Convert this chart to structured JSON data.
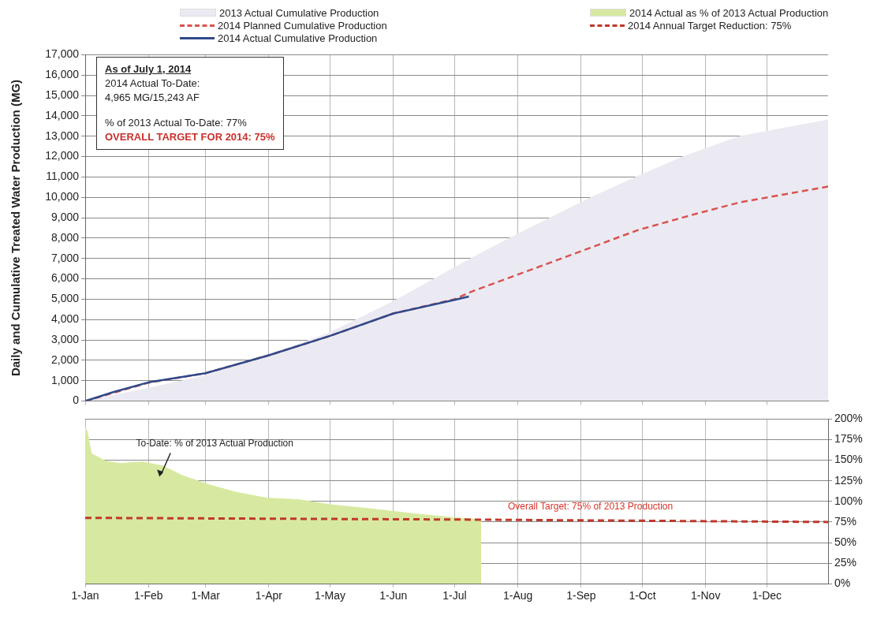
{
  "chart_data": [
    {
      "type": "area",
      "ylabel": "Daily and Cumulative Treated Water Production (MG)",
      "xlim": [
        "--01-01",
        "--12-31"
      ],
      "xticks": [
        {
          "value": "--01-01",
          "label": null
        },
        {
          "value": "--02-01",
          "label": null
        },
        {
          "value": "--03-01",
          "label": null
        },
        {
          "value": "--04-01",
          "label": null
        },
        {
          "value": "--05-01",
          "label": null
        },
        {
          "value": "--06-01",
          "label": null
        },
        {
          "value": "--07-01",
          "label": null
        },
        {
          "value": "--08-01",
          "label": null
        },
        {
          "value": "--09-01",
          "label": null
        },
        {
          "value": "--10-01",
          "label": null
        },
        {
          "value": "--11-01",
          "label": null
        },
        {
          "value": "--12-01",
          "label": null
        }
      ],
      "ylim": [
        0,
        17000
      ],
      "yticks": [
        0,
        {
          "value": 1000,
          "label": "1,000"
        },
        {
          "value": 2000,
          "label": "2,000"
        },
        {
          "value": 3000,
          "label": "3,000"
        },
        {
          "value": 4000,
          "label": "4,000"
        },
        {
          "value": 5000,
          "label": "5,000"
        },
        {
          "value": 6000,
          "label": "6,000"
        },
        {
          "value": 7000,
          "label": "7,000"
        },
        {
          "value": 8000,
          "label": "8,000"
        },
        {
          "value": 9000,
          "label": "9,000"
        },
        {
          "value": 10000,
          "label": "10,000"
        },
        {
          "value": 11000,
          "label": "11,000"
        },
        {
          "value": 12000,
          "label": "12,000"
        },
        {
          "value": 13000,
          "label": "13,000"
        },
        {
          "value": 14000,
          "label": "14,000"
        },
        {
          "value": 15000,
          "label": "15,000"
        },
        {
          "value": 16000,
          "label": "16,000"
        },
        {
          "value": 17000,
          "label": "17,000"
        }
      ],
      "tick_labels": "y",
      "grid": true,
      "legend": "top",
      "marker": "none",
      "annotations": [
        "As of July 1, 2014",
        "2014 Actual  To-Date:",
        "4,965 MG/15,243 AF",
        "% of 2013 Actual To-Date: 77%",
        "OVERALL TARGET FOR 2014: 75%"
      ],
      "series": [
        {
          "name": "2013 Actual Cumulative Production",
          "color": "#ebeaf3",
          "x": [
            "--01-01",
            "--02-01",
            "--03-01",
            "--04-01",
            "--05-01",
            "--05-14",
            "--06-03",
            "--06-21",
            "--07-09",
            "--07-28",
            "--08-17",
            "--09-06",
            "--09-28",
            "--10-21",
            "--11-18",
            "--12-31"
          ],
          "values": [
            0,
            630,
            1250,
            2250,
            3370,
            4000,
            5000,
            6000,
            7000,
            8000,
            9000,
            10000,
            11000,
            12000,
            13000,
            13800
          ]
        },
        {
          "name": "2014 Planned Cumulative Production",
          "type": "line",
          "line_style": "dashed",
          "color": "#d9534f",
          "x": [
            "--01-01",
            "--02-01",
            "--03-01",
            "--04-01",
            "--05-01",
            "--06-01",
            "--07-01",
            "--07-09",
            "--08-17",
            "--09-29",
            "--10-29",
            "--11-18",
            "--12-31"
          ],
          "values": [
            0,
            900,
            1370,
            2250,
            3200,
            4300,
            5000,
            5360,
            6800,
            8400,
            9240,
            9760,
            10530
          ]
        },
        {
          "name": "2014 Actual Cumulative Production",
          "type": "line",
          "line_style": "solid",
          "color": "#2e4a8a",
          "x": [
            "--01-01",
            "--01-15",
            "--02-01",
            "--03-01",
            "--04-01",
            "--05-01",
            "--06-01",
            "--07-01",
            "--07-08"
          ],
          "values": [
            0,
            450,
            920,
            1370,
            2250,
            3200,
            4300,
            4970,
            5130
          ]
        }
      ]
    },
    {
      "type": "area",
      "xlim": [
        "--01-01",
        "--12-31"
      ],
      "xticks": [
        {
          "value": "--01-01",
          "label": "1-Jan"
        },
        {
          "value": "--02-01",
          "label": "1-Feb"
        },
        {
          "value": "--03-01",
          "label": "1-Mar"
        },
        {
          "value": "--04-01",
          "label": "1-Apr"
        },
        {
          "value": "--05-01",
          "label": "1-May"
        },
        {
          "value": "--06-01",
          "label": "1-Jun"
        },
        {
          "value": "--07-01",
          "label": "1-Jul"
        },
        {
          "value": "--08-01",
          "label": "1-Aug"
        },
        {
          "value": "--09-01",
          "label": "1-Sep"
        },
        {
          "value": "--10-01",
          "label": "1-Oct"
        },
        {
          "value": "--11-01",
          "label": "1-Nov"
        },
        {
          "value": "--12-01",
          "label": "1-Dec"
        }
      ],
      "y2lim": [
        0,
        200
      ],
      "y2ticks": [
        {
          "value": 0,
          "label": "0%"
        },
        {
          "value": 25,
          "label": "25%"
        },
        {
          "value": 50,
          "label": "50%"
        },
        {
          "value": 75,
          "label": "75%"
        },
        {
          "value": 100,
          "label": "100%"
        },
        {
          "value": 125,
          "label": "125%"
        },
        {
          "value": 150,
          "label": "150%"
        },
        {
          "value": 175,
          "label": "175%"
        },
        {
          "value": 200,
          "label": "200%"
        }
      ],
      "grid": true,
      "legend": "top",
      "marker": "none",
      "annotations": [
        "To-Date: % of 2013 Actual Production",
        "Overall Target: 75% of 2013 Production"
      ],
      "series": [
        {
          "name": "2014 Actual as % of 2013 Actual Production",
          "axis": "y2",
          "color": "#d7e9a0",
          "x": [
            "--01-01",
            "--01-02",
            "--01-04",
            "--01-11",
            "--01-18",
            "--01-29",
            "--02-08",
            "--02-18",
            "--03-03",
            "--03-16",
            "--03-31",
            "--04-16",
            "--05-01",
            "--05-21",
            "--06-11",
            "--07-02",
            "--07-14"
          ],
          "values": [
            190,
            185,
            158,
            149,
            146,
            148,
            143,
            131,
            120,
            111,
            104,
            102,
            96,
            91,
            85,
            80,
            78
          ]
        },
        {
          "name": "2014 Annual Target Reduction: 75%",
          "type": "line",
          "axis": "y2",
          "line_style": "dashed",
          "color": "#c0392b",
          "x": [
            "--01-01",
            "--07-01",
            "--12-31"
          ],
          "values": [
            80,
            78,
            75
          ]
        }
      ]
    }
  ]
}
